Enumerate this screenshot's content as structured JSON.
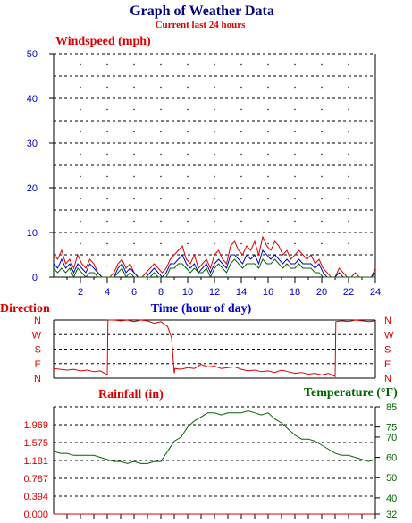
{
  "title": "Graph of Weather Data",
  "subtitle": "Current last 24 hours",
  "colors": {
    "title": "#000080",
    "red": "#dd0000",
    "blue": "#0000cc",
    "green": "#006600",
    "axis": "#000000"
  },
  "chart_data": [
    {
      "type": "line",
      "ylabel": "Windspeed (mph)",
      "xlabel": "Time (hour of day)",
      "ylim": [
        0,
        50
      ],
      "y_ticks": [
        "0",
        "10",
        "20",
        "30",
        "40",
        "50"
      ],
      "x_ticks": [
        "2",
        "4",
        "6",
        "8",
        "10",
        "12",
        "14",
        "16",
        "18",
        "20",
        "22",
        "24"
      ],
      "grid": true,
      "series": [
        {
          "color": "#dd0000",
          "x": [
            0,
            0.3,
            0.6,
            0.9,
            1.2,
            1.5,
            1.8,
            2.1,
            2.4,
            2.7,
            3.0,
            3.3,
            3.6,
            3.9,
            4.2,
            4.5,
            4.8,
            5.1,
            5.4,
            5.7,
            6.0,
            6.3,
            6.6,
            6.9,
            7.2,
            7.5,
            7.8,
            8.1,
            8.4,
            8.7,
            9.0,
            9.3,
            9.6,
            9.9,
            10.2,
            10.5,
            10.8,
            11.1,
            11.4,
            11.7,
            12.0,
            12.3,
            12.6,
            12.9,
            13.2,
            13.5,
            13.8,
            14.1,
            14.4,
            14.7,
            15.0,
            15.3,
            15.6,
            15.9,
            16.2,
            16.5,
            16.8,
            17.1,
            17.4,
            17.7,
            18.0,
            18.3,
            18.6,
            18.9,
            19.2,
            19.5,
            19.8,
            20.1,
            20.4,
            20.7,
            21.0,
            21.3,
            21.6,
            21.9,
            22.2,
            22.5,
            22.8,
            23.1,
            23.4,
            23.7,
            24.0
          ],
          "values": [
            5,
            4,
            6,
            3,
            4,
            2,
            5,
            3,
            2,
            4,
            3,
            1,
            0,
            0,
            0,
            1,
            3,
            4,
            2,
            3,
            1,
            0,
            0,
            1,
            2,
            3,
            2,
            1,
            2,
            4,
            5,
            6,
            7,
            4,
            3,
            5,
            2,
            3,
            4,
            2,
            5,
            6,
            4,
            3,
            7,
            8,
            6,
            5,
            7,
            6,
            8,
            5,
            9,
            7,
            6,
            8,
            7,
            5,
            6,
            4,
            5,
            6,
            5,
            4,
            5,
            3,
            4,
            2,
            1,
            0,
            0,
            2,
            1,
            0,
            0,
            1,
            0,
            0,
            0,
            0,
            2
          ]
        },
        {
          "color": "#0000cc",
          "x": [
            0,
            0.3,
            0.6,
            0.9,
            1.2,
            1.5,
            1.8,
            2.1,
            2.4,
            2.7,
            3.0,
            3.3,
            3.6,
            3.9,
            4.2,
            4.5,
            4.8,
            5.1,
            5.4,
            5.7,
            6.0,
            6.3,
            6.6,
            6.9,
            7.2,
            7.5,
            7.8,
            8.1,
            8.4,
            8.7,
            9.0,
            9.3,
            9.6,
            9.9,
            10.2,
            10.5,
            10.8,
            11.1,
            11.4,
            11.7,
            12.0,
            12.3,
            12.6,
            12.9,
            13.2,
            13.5,
            13.8,
            14.1,
            14.4,
            14.7,
            15.0,
            15.3,
            15.6,
            15.9,
            16.2,
            16.5,
            16.8,
            17.1,
            17.4,
            17.7,
            18.0,
            18.3,
            18.6,
            18.9,
            19.2,
            19.5,
            19.8,
            20.1,
            20.4,
            20.7,
            21.0,
            21.3,
            21.6,
            21.9,
            22.2,
            22.5,
            22.8,
            23.1,
            23.4,
            23.7,
            24.0
          ],
          "values": [
            3,
            2,
            4,
            2,
            3,
            1,
            3,
            2,
            1,
            3,
            2,
            1,
            0,
            0,
            0,
            0,
            2,
            3,
            1,
            2,
            1,
            0,
            0,
            0,
            1,
            2,
            1,
            0,
            1,
            3,
            3,
            4,
            5,
            3,
            2,
            3,
            1,
            2,
            3,
            1,
            3,
            4,
            3,
            2,
            5,
            5,
            4,
            3,
            5,
            4,
            5,
            3,
            6,
            5,
            4,
            5,
            4,
            3,
            4,
            3,
            3,
            4,
            3,
            3,
            3,
            2,
            3,
            1,
            0,
            0,
            0,
            1,
            0,
            0,
            0,
            0,
            0,
            0,
            0,
            0,
            1
          ]
        },
        {
          "color": "#006600",
          "x": [
            0,
            0.3,
            0.6,
            0.9,
            1.2,
            1.5,
            1.8,
            2.1,
            2.4,
            2.7,
            3.0,
            3.3,
            3.6,
            3.9,
            4.2,
            4.5,
            4.8,
            5.1,
            5.4,
            5.7,
            6.0,
            6.3,
            6.6,
            6.9,
            7.2,
            7.5,
            7.8,
            8.1,
            8.4,
            8.7,
            9.0,
            9.3,
            9.6,
            9.9,
            10.2,
            10.5,
            10.8,
            11.1,
            11.4,
            11.7,
            12.0,
            12.3,
            12.6,
            12.9,
            13.2,
            13.5,
            13.8,
            14.1,
            14.4,
            14.7,
            15.0,
            15.3,
            15.6,
            15.9,
            16.2,
            16.5,
            16.8,
            17.1,
            17.4,
            17.7,
            18.0,
            18.3,
            18.6,
            18.9,
            19.2,
            19.5,
            19.8,
            20.1,
            20.4,
            20.7,
            21.0,
            21.3,
            21.6,
            21.9,
            22.2,
            22.5,
            22.8,
            23.1,
            23.4,
            23.7,
            24.0
          ],
          "values": [
            2,
            1,
            2,
            1,
            2,
            0,
            2,
            1,
            0,
            1,
            1,
            0,
            0,
            0,
            0,
            0,
            1,
            2,
            0,
            1,
            0,
            0,
            0,
            0,
            0,
            1,
            0,
            0,
            0,
            2,
            2,
            3,
            3,
            2,
            1,
            2,
            1,
            1,
            2,
            0,
            2,
            3,
            2,
            1,
            3,
            4,
            3,
            2,
            3,
            3,
            3,
            2,
            4,
            3,
            3,
            4,
            3,
            2,
            3,
            2,
            2,
            3,
            2,
            2,
            2,
            1,
            1,
            0,
            0,
            0,
            0,
            0,
            0,
            0,
            0,
            0,
            0,
            0,
            0,
            0,
            0
          ]
        }
      ]
    },
    {
      "type": "line",
      "ylabel": "Direction",
      "y_ticks": [
        "N",
        "W",
        "S",
        "E",
        "N"
      ],
      "right_ticks": [
        "N",
        "W",
        "S",
        "E",
        "N"
      ],
      "ylim": [
        0,
        360
      ],
      "grid": true,
      "series": [
        {
          "color": "#dd0000",
          "x": [
            0,
            0.5,
            1.0,
            1.5,
            2.0,
            2.5,
            3.0,
            3.5,
            4.0,
            4.05,
            4.5,
            5.0,
            5.5,
            6.0,
            6.5,
            7.0,
            7.5,
            8.0,
            8.5,
            8.8,
            9.0,
            9.05,
            9.5,
            10.0,
            10.5,
            11.0,
            11.5,
            12.0,
            12.5,
            13.0,
            13.5,
            14.0,
            14.5,
            15.0,
            15.5,
            16.0,
            16.5,
            17.0,
            17.5,
            18.0,
            18.5,
            19.0,
            19.5,
            20.0,
            20.5,
            21.0,
            21.05,
            21.5,
            22.0,
            22.5,
            23.0,
            23.5,
            24.0
          ],
          "values": [
            60,
            55,
            50,
            55,
            45,
            50,
            40,
            45,
            20,
            360,
            360,
            355,
            360,
            350,
            360,
            355,
            340,
            350,
            320,
            250,
            30,
            60,
            55,
            65,
            60,
            85,
            70,
            75,
            60,
            65,
            70,
            55,
            45,
            50,
            40,
            45,
            35,
            50,
            40,
            30,
            35,
            25,
            30,
            20,
            30,
            10,
            350,
            355,
            350,
            360,
            355,
            350,
            355
          ]
        }
      ]
    },
    {
      "type": "line",
      "ylabel": "Rainfall (in)",
      "y2label": "Temperature (°F)",
      "ylim": [
        0,
        2.363
      ],
      "y_ticks": [
        "0.000",
        "0.394",
        "0.787",
        "1.181",
        "1.575",
        "1.969"
      ],
      "y2lim": [
        32,
        85
      ],
      "y2_ticks": [
        "32",
        "40",
        "50",
        "60",
        "70",
        "75",
        "85"
      ],
      "grid": true,
      "series": [
        {
          "name": "Temperature",
          "color": "#006600",
          "axis": "right",
          "x": [
            0,
            0.5,
            1.0,
            1.5,
            2.0,
            2.5,
            3.0,
            3.5,
            4.0,
            4.5,
            5.0,
            5.5,
            6.0,
            6.5,
            7.0,
            7.5,
            8.0,
            8.5,
            9.0,
            9.5,
            10.0,
            10.5,
            11.0,
            11.5,
            12.0,
            12.5,
            13.0,
            13.5,
            14.0,
            14.5,
            15.0,
            15.5,
            16.0,
            16.5,
            17.0,
            17.5,
            18.0,
            18.5,
            19.0,
            19.5,
            20.0,
            20.5,
            21.0,
            21.5,
            22.0,
            22.5,
            23.0,
            23.5,
            24.0
          ],
          "values": [
            63,
            62,
            62,
            61,
            61,
            61,
            61,
            60,
            59,
            58,
            58,
            57,
            58,
            57,
            57,
            58,
            58,
            63,
            68,
            70,
            75,
            78,
            80,
            82,
            82,
            81,
            82,
            82,
            82,
            83,
            82,
            81,
            82,
            79,
            77,
            74,
            71,
            69,
            69,
            68,
            66,
            64,
            62,
            61,
            61,
            60,
            59,
            58,
            59
          ]
        },
        {
          "name": "Rainfall",
          "color": "#dd0000",
          "axis": "left",
          "x": [
            0,
            24
          ],
          "values": [
            0,
            0
          ]
        }
      ]
    }
  ]
}
